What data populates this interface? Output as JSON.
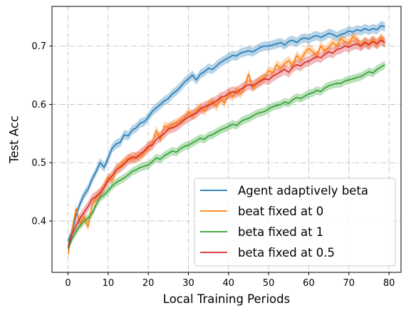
{
  "chart_data": {
    "type": "line",
    "title": "",
    "xlabel": "Local Training Periods",
    "ylabel": "Test Acc",
    "xlim": [
      -4,
      83
    ],
    "ylim": [
      0.312,
      0.768
    ],
    "xticks": [
      0,
      10,
      20,
      30,
      40,
      50,
      60,
      70,
      80
    ],
    "yticks": [
      0.4,
      0.5,
      0.6,
      0.7
    ],
    "xtick_labels": [
      "0",
      "10",
      "20",
      "30",
      "40",
      "50",
      "60",
      "70",
      "80"
    ],
    "ytick_labels": [
      "0.4",
      "0.5",
      "0.6",
      "0.7"
    ],
    "grid": true,
    "grid_style": "dash-dot",
    "legend_position": "lower-right",
    "band": "shaded confidence band around each series",
    "x": [
      0,
      1,
      2,
      3,
      4,
      5,
      6,
      7,
      8,
      9,
      10,
      11,
      12,
      13,
      14,
      15,
      16,
      17,
      18,
      19,
      20,
      21,
      22,
      23,
      24,
      25,
      26,
      27,
      28,
      29,
      30,
      31,
      32,
      33,
      34,
      35,
      36,
      37,
      38,
      39,
      40,
      41,
      42,
      43,
      44,
      45,
      46,
      47,
      48,
      49,
      50,
      51,
      52,
      53,
      54,
      55,
      56,
      57,
      58,
      59,
      60,
      61,
      62,
      63,
      64,
      65,
      66,
      67,
      68,
      69,
      70,
      71,
      72,
      73,
      74,
      75,
      76,
      77,
      78,
      79
    ],
    "series": [
      {
        "name": "Agent adaptively beta",
        "color": "#1f77b4",
        "band_halfwidth": 0.008,
        "values": [
          0.365,
          0.382,
          0.41,
          0.43,
          0.445,
          0.455,
          0.472,
          0.485,
          0.5,
          0.492,
          0.508,
          0.525,
          0.532,
          0.535,
          0.548,
          0.546,
          0.556,
          0.56,
          0.568,
          0.57,
          0.578,
          0.588,
          0.594,
          0.6,
          0.606,
          0.61,
          0.618,
          0.623,
          0.63,
          0.638,
          0.644,
          0.65,
          0.642,
          0.652,
          0.656,
          0.662,
          0.66,
          0.666,
          0.672,
          0.676,
          0.68,
          0.684,
          0.683,
          0.688,
          0.69,
          0.692,
          0.69,
          0.694,
          0.698,
          0.7,
          0.7,
          0.702,
          0.704,
          0.706,
          0.702,
          0.708,
          0.71,
          0.706,
          0.712,
          0.714,
          0.712,
          0.716,
          0.718,
          0.715,
          0.718,
          0.722,
          0.72,
          0.716,
          0.72,
          0.722,
          0.726,
          0.724,
          0.728,
          0.726,
          0.73,
          0.727,
          0.73,
          0.728,
          0.735,
          0.733
        ]
      },
      {
        "name": "beat fixed at 0",
        "color": "#ff7f0e",
        "band_halfwidth": 0.008,
        "values": [
          0.343,
          0.385,
          0.421,
          0.395,
          0.407,
          0.39,
          0.428,
          0.44,
          0.449,
          0.46,
          0.475,
          0.469,
          0.488,
          0.495,
          0.502,
          0.508,
          0.505,
          0.512,
          0.51,
          0.518,
          0.525,
          0.535,
          0.555,
          0.54,
          0.563,
          0.56,
          0.565,
          0.568,
          0.572,
          0.576,
          0.588,
          0.58,
          0.59,
          0.595,
          0.588,
          0.6,
          0.605,
          0.596,
          0.61,
          0.602,
          0.62,
          0.612,
          0.625,
          0.618,
          0.63,
          0.652,
          0.628,
          0.636,
          0.642,
          0.646,
          0.658,
          0.654,
          0.668,
          0.662,
          0.67,
          0.675,
          0.666,
          0.684,
          0.676,
          0.688,
          0.696,
          0.69,
          0.683,
          0.7,
          0.692,
          0.698,
          0.706,
          0.7,
          0.712,
          0.708,
          0.705,
          0.716,
          0.712,
          0.7,
          0.708,
          0.703,
          0.712,
          0.702,
          0.715,
          0.705
        ]
      },
      {
        "name": "beta fixed at 1",
        "color": "#2ca02c",
        "band_halfwidth": 0.007,
        "values": [
          0.353,
          0.37,
          0.382,
          0.392,
          0.4,
          0.405,
          0.413,
          0.428,
          0.44,
          0.445,
          0.452,
          0.46,
          0.466,
          0.47,
          0.474,
          0.479,
          0.485,
          0.488,
          0.492,
          0.494,
          0.496,
          0.502,
          0.508,
          0.506,
          0.512,
          0.516,
          0.52,
          0.518,
          0.524,
          0.528,
          0.53,
          0.534,
          0.538,
          0.542,
          0.54,
          0.546,
          0.548,
          0.552,
          0.556,
          0.559,
          0.562,
          0.566,
          0.564,
          0.57,
          0.574,
          0.576,
          0.58,
          0.584,
          0.586,
          0.588,
          0.592,
          0.596,
          0.598,
          0.6,
          0.604,
          0.602,
          0.608,
          0.612,
          0.61,
          0.614,
          0.618,
          0.62,
          0.624,
          0.622,
          0.628,
          0.632,
          0.634,
          0.636,
          0.636,
          0.64,
          0.642,
          0.644,
          0.646,
          0.648,
          0.652,
          0.656,
          0.654,
          0.66,
          0.664,
          0.668
        ]
      },
      {
        "name": "beta fixed at 0.5",
        "color": "#d62728",
        "band_halfwidth": 0.009,
        "values": [
          0.355,
          0.378,
          0.392,
          0.405,
          0.415,
          0.425,
          0.438,
          0.442,
          0.448,
          0.458,
          0.47,
          0.478,
          0.488,
          0.492,
          0.498,
          0.505,
          0.51,
          0.508,
          0.515,
          0.52,
          0.528,
          0.53,
          0.54,
          0.545,
          0.55,
          0.558,
          0.56,
          0.563,
          0.568,
          0.574,
          0.578,
          0.582,
          0.585,
          0.592,
          0.596,
          0.598,
          0.602,
          0.606,
          0.612,
          0.614,
          0.618,
          0.622,
          0.62,
          0.626,
          0.63,
          0.634,
          0.632,
          0.636,
          0.64,
          0.644,
          0.642,
          0.648,
          0.652,
          0.656,
          0.66,
          0.655,
          0.664,
          0.668,
          0.666,
          0.672,
          0.674,
          0.678,
          0.682,
          0.68,
          0.686,
          0.69,
          0.688,
          0.694,
          0.696,
          0.7,
          0.698,
          0.702,
          0.704,
          0.7,
          0.706,
          0.702,
          0.708,
          0.704,
          0.71,
          0.706
        ]
      }
    ]
  }
}
